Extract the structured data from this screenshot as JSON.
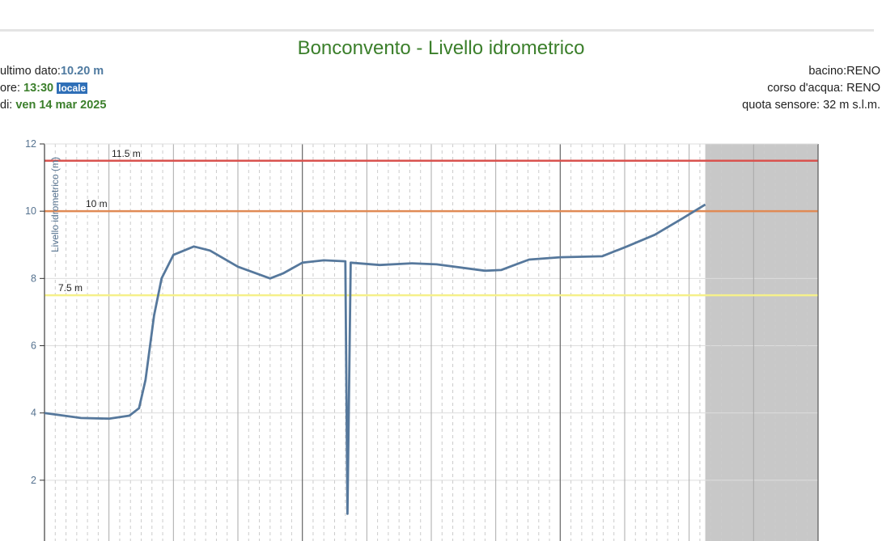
{
  "header": {
    "title": "Bonconvento - Livello idrometrico",
    "last_label": "ultimo dato:",
    "last_value": "10.20 m",
    "time_label": "ore: ",
    "time_value": "13:30",
    "time_badge": "locale",
    "date_label": "di: ",
    "date_value": "ven 14 mar 2025",
    "basin": "bacino:RENO",
    "river": "corso d'acqua: RENO",
    "sensor_altitude": "quota sensore: 32 m s.l.m."
  },
  "chart_data": {
    "type": "line",
    "ylabel": "Livello idrometrico (m)",
    "ylim": [
      0,
      12
    ],
    "yticks": [
      "2",
      "4",
      "6",
      "8",
      "10",
      "12"
    ],
    "xlim": [
      "2025-03-12T00:00",
      "2025-03-15T00:00"
    ],
    "grid": true,
    "forecast_shaded_from": "2025-03-14T13:30",
    "thresholds": [
      {
        "label": "11.5 m",
        "value": 11.5,
        "color": "#d9534f"
      },
      {
        "label": "10 m",
        "value": 10,
        "color": "#e08a55"
      },
      {
        "label": "7.5 m",
        "value": 7.5,
        "color": "#f5f08a"
      }
    ],
    "series_color": "#56789c",
    "points": [
      [
        "2025-03-12T00:00",
        4.0
      ],
      [
        "2025-03-12T03:24",
        3.85
      ],
      [
        "2025-03-12T06:00",
        3.83
      ],
      [
        "2025-03-12T07:54",
        3.92
      ],
      [
        "2025-03-12T08:48",
        4.14
      ],
      [
        "2025-03-12T09:24",
        4.98
      ],
      [
        "2025-03-12T10:12",
        6.9
      ],
      [
        "2025-03-12T10:54",
        8.0
      ],
      [
        "2025-03-12T12:00",
        8.7
      ],
      [
        "2025-03-12T13:54",
        8.95
      ],
      [
        "2025-03-12T15:24",
        8.83
      ],
      [
        "2025-03-12T18:00",
        8.35
      ],
      [
        "2025-03-12T21:00",
        8.0
      ],
      [
        "2025-03-12T22:12",
        8.15
      ],
      [
        "2025-03-13T00:00",
        8.47
      ],
      [
        "2025-03-13T02:00",
        8.54
      ],
      [
        "2025-03-13T04:00",
        8.51
      ],
      [
        "2025-03-13T04:12",
        1.0
      ],
      [
        "2025-03-13T04:30",
        8.47
      ],
      [
        "2025-03-13T07:12",
        8.4
      ],
      [
        "2025-03-13T10:12",
        8.45
      ],
      [
        "2025-03-13T12:30",
        8.42
      ],
      [
        "2025-03-13T17:00",
        8.23
      ],
      [
        "2025-03-13T18:30",
        8.25
      ],
      [
        "2025-03-13T21:06",
        8.56
      ],
      [
        "2025-03-14T00:00",
        8.63
      ],
      [
        "2025-03-14T03:54",
        8.66
      ],
      [
        "2025-03-14T06:12",
        8.95
      ],
      [
        "2025-03-14T08:48",
        9.3
      ],
      [
        "2025-03-14T11:24",
        9.79
      ],
      [
        "2025-03-14T13:30",
        10.2
      ]
    ]
  }
}
